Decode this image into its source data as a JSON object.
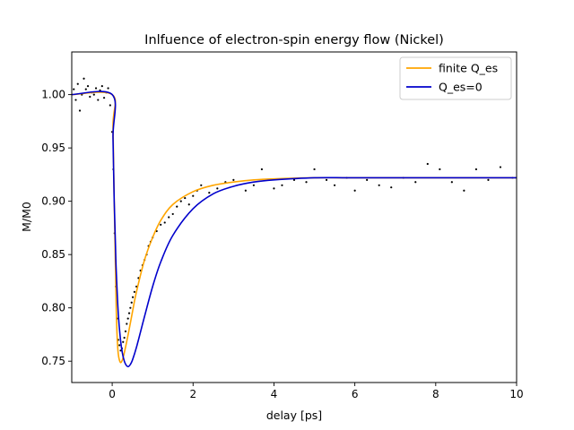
{
  "chart_data": {
    "type": "line",
    "title": "Inlfuence of electron-spin energy flow (Nickel)",
    "xlabel": "delay [ps]",
    "ylabel": "M/M0",
    "xlim": [
      -1,
      10
    ],
    "ylim": [
      0.73,
      1.04
    ],
    "xticks": [
      0,
      2,
      4,
      6,
      8,
      10
    ],
    "yticks": [
      0.75,
      0.8,
      0.85,
      0.9,
      0.95,
      1.0
    ],
    "xtick_labels": [
      "0",
      "2",
      "4",
      "6",
      "8",
      "10"
    ],
    "ytick_labels": [
      "0.75",
      "0.80",
      "0.85",
      "0.90",
      "0.95",
      "1.00"
    ],
    "grid": false,
    "legend_position": "top-right",
    "series": [
      {
        "name": "finite Q_es",
        "color": "#ffa500",
        "x": [
          -1,
          0.0,
          0.02,
          0.05,
          0.08,
          0.1,
          0.12,
          0.15,
          0.2,
          0.25,
          0.3,
          0.4,
          0.5,
          0.6,
          0.8,
          1.0,
          1.2,
          1.5,
          2.0,
          2.5,
          3.0,
          3.5,
          4.0,
          5.0,
          6.0,
          8.0,
          10.0
        ],
        "y": [
          1.0,
          1.0,
          0.97,
          0.9,
          0.84,
          0.8,
          0.775,
          0.757,
          0.749,
          0.751,
          0.758,
          0.776,
          0.796,
          0.815,
          0.845,
          0.866,
          0.882,
          0.897,
          0.909,
          0.915,
          0.918,
          0.92,
          0.921,
          0.922,
          0.922,
          0.922,
          0.922
        ]
      },
      {
        "name": "Q_es=0",
        "color": "#0000cc",
        "x": [
          -1,
          0.0,
          0.02,
          0.05,
          0.08,
          0.1,
          0.15,
          0.2,
          0.25,
          0.3,
          0.35,
          0.4,
          0.45,
          0.5,
          0.6,
          0.8,
          1.0,
          1.2,
          1.5,
          2.0,
          2.5,
          3.0,
          3.5,
          4.0,
          5.0,
          6.0,
          8.0,
          10.0
        ],
        "y": [
          1.0,
          1.0,
          0.96,
          0.9,
          0.86,
          0.835,
          0.795,
          0.772,
          0.758,
          0.75,
          0.746,
          0.745,
          0.747,
          0.751,
          0.763,
          0.792,
          0.82,
          0.843,
          0.868,
          0.893,
          0.907,
          0.914,
          0.918,
          0.92,
          0.922,
          0.922,
          0.922,
          0.922
        ]
      }
    ],
    "scatter": {
      "color": "#000000",
      "x": [
        -0.95,
        -0.9,
        -0.85,
        -0.8,
        -0.75,
        -0.7,
        -0.65,
        -0.6,
        -0.55,
        -0.5,
        -0.45,
        -0.4,
        -0.35,
        -0.3,
        -0.25,
        -0.2,
        -0.15,
        -0.1,
        -0.05,
        0.0,
        0.03,
        0.06,
        0.09,
        0.12,
        0.15,
        0.18,
        0.21,
        0.24,
        0.27,
        0.3,
        0.33,
        0.36,
        0.39,
        0.42,
        0.45,
        0.48,
        0.51,
        0.55,
        0.6,
        0.65,
        0.7,
        0.75,
        0.8,
        0.85,
        0.9,
        0.95,
        1.0,
        1.1,
        1.2,
        1.3,
        1.4,
        1.5,
        1.6,
        1.7,
        1.8,
        1.9,
        2.0,
        2.1,
        2.2,
        2.4,
        2.6,
        2.8,
        3.0,
        3.3,
        3.5,
        3.7,
        4.0,
        4.2,
        4.5,
        4.8,
        5.0,
        5.3,
        5.5,
        5.8,
        6.0,
        6.3,
        6.6,
        6.9,
        7.2,
        7.5,
        7.8,
        8.1,
        8.4,
        8.7,
        9.0,
        9.3,
        9.6,
        9.9
      ],
      "y": [
        1.005,
        0.995,
        1.01,
        0.985,
        1.0,
        1.015,
        1.005,
        1.008,
        0.998,
        1.002,
        1.0,
        1.006,
        0.995,
        1.004,
        1.008,
        0.997,
        1.002,
        1.006,
        0.99,
        0.965,
        0.93,
        0.87,
        0.82,
        0.79,
        0.77,
        0.765,
        0.76,
        0.762,
        0.768,
        0.772,
        0.778,
        0.785,
        0.79,
        0.795,
        0.8,
        0.805,
        0.81,
        0.815,
        0.82,
        0.828,
        0.835,
        0.84,
        0.845,
        0.85,
        0.858,
        0.862,
        0.866,
        0.872,
        0.878,
        0.88,
        0.885,
        0.888,
        0.895,
        0.9,
        0.903,
        0.897,
        0.905,
        0.91,
        0.915,
        0.908,
        0.912,
        0.918,
        0.92,
        0.91,
        0.915,
        0.93,
        0.912,
        0.915,
        0.92,
        0.918,
        0.93,
        0.92,
        0.915,
        0.922,
        0.91,
        0.92,
        0.915,
        0.913,
        0.922,
        0.918,
        0.935,
        0.93,
        0.918,
        0.91,
        0.93,
        0.92,
        0.932,
        0.922
      ]
    }
  }
}
